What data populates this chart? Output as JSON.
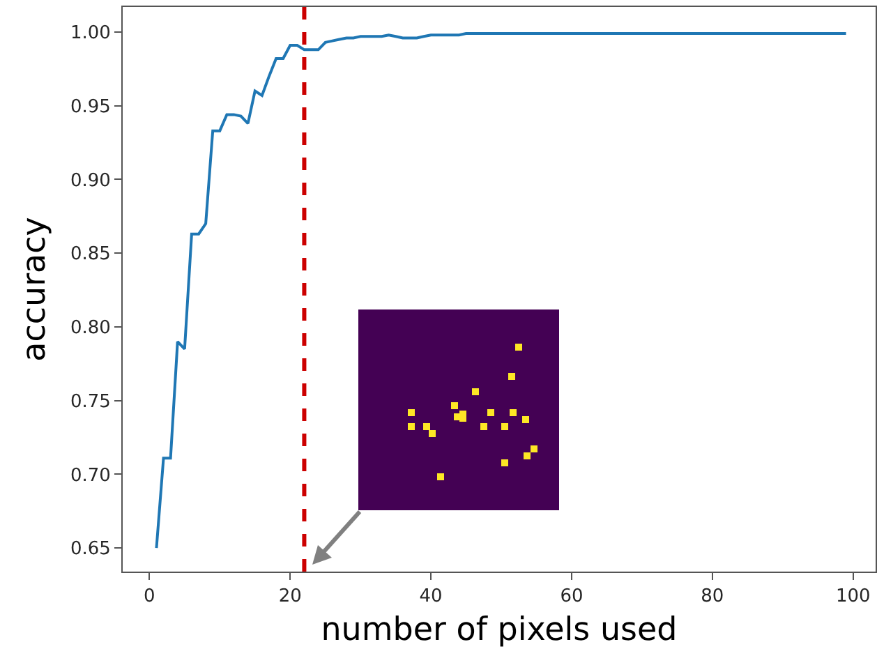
{
  "chart_data": {
    "type": "line",
    "xlabel": "number of pixels used",
    "ylabel": "accuracy",
    "x": [
      1,
      2,
      3,
      4,
      5,
      6,
      7,
      8,
      9,
      10,
      11,
      12,
      13,
      14,
      15,
      16,
      17,
      18,
      19,
      20,
      21,
      22,
      23,
      24,
      25,
      26,
      27,
      28,
      29,
      30,
      31,
      32,
      33,
      34,
      35,
      36,
      37,
      38,
      39,
      40,
      41,
      42,
      43,
      44,
      45,
      99
    ],
    "series": [
      {
        "color": "#1f77b4",
        "values": [
          0.65,
          0.711,
          0.711,
          0.79,
          0.785,
          0.863,
          0.863,
          0.87,
          0.933,
          0.933,
          0.944,
          0.944,
          0.943,
          0.938,
          0.96,
          0.957,
          0.97,
          0.982,
          0.982,
          0.991,
          0.991,
          0.988,
          0.988,
          0.988,
          0.993,
          0.994,
          0.995,
          0.996,
          0.996,
          0.997,
          0.997,
          0.997,
          0.997,
          0.998,
          0.997,
          0.996,
          0.996,
          0.996,
          0.997,
          0.998,
          0.998,
          0.998,
          0.998,
          0.998,
          0.999,
          0.999
        ]
      }
    ],
    "xlim": [
      -3.8,
      103.2
    ],
    "xticks": [
      0,
      20,
      40,
      60,
      80,
      100
    ],
    "ylim": [
      0.634,
      1.017
    ],
    "yticks": [
      0.65,
      {
        "value": 0.7,
        "label": "0.70"
      },
      0.75,
      {
        "value": 0.8,
        "label": "0.80"
      },
      0.85,
      {
        "value": 0.9,
        "label": "0.90"
      },
      0.95,
      {
        "value": 1,
        "label": "1.00"
      }
    ],
    "ref_lines": [
      {
        "axis": "x",
        "value": 22,
        "color": "#cc0000",
        "line_style": "dashed"
      }
    ],
    "grid": false,
    "marker": "none",
    "line_style": "solid"
  }
}
